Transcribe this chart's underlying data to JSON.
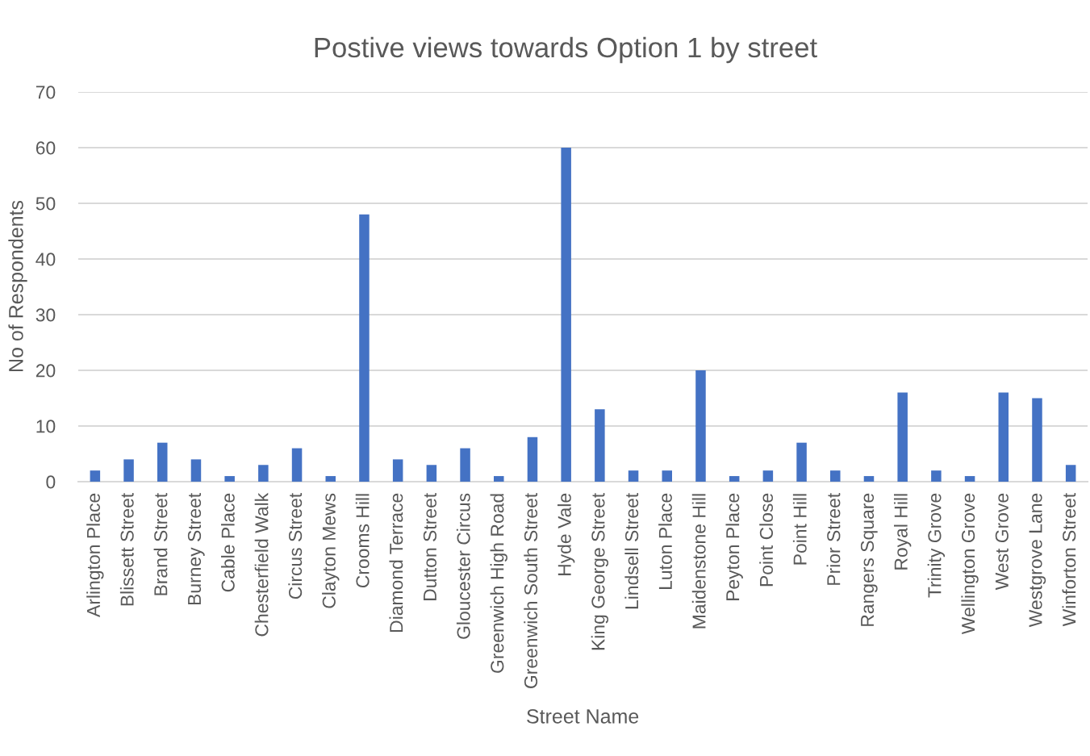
{
  "chart_data": {
    "type": "bar",
    "title": "Postive views towards Option 1 by street",
    "xlabel": "Street Name",
    "ylabel": "No of Respondents",
    "categories": [
      "Arlington Place",
      "Blissett Street",
      "Brand Street",
      "Burney Street",
      "Cable Place",
      "Chesterfield Walk",
      "Circus Street",
      "Clayton Mews",
      "Crooms Hill",
      "Diamond Terrace",
      "Dutton Street",
      "Gloucester Circus",
      "Greenwich High Road",
      "Greenwich South Street",
      "Hyde Vale",
      "King George Street",
      "Lindsell Street",
      "Luton Place",
      "Maidenstone Hill",
      "Peyton Place",
      "Point Close",
      "Point Hill",
      "Prior Street",
      "Rangers Square",
      "Royal Hill",
      "Trinity Grove",
      "Wellington Grove",
      "West Grove",
      "Westgrove Lane",
      "Winforton Street"
    ],
    "values": [
      2,
      4,
      7,
      4,
      1,
      3,
      6,
      1,
      48,
      4,
      3,
      6,
      1,
      8,
      60,
      13,
      2,
      2,
      20,
      1,
      2,
      7,
      2,
      1,
      16,
      2,
      1,
      16,
      15,
      3
    ],
    "color": "#4472c4",
    "ylim": [
      0,
      70
    ],
    "yticks": [
      0,
      10,
      20,
      30,
      40,
      50,
      60,
      70
    ],
    "grid": "y",
    "legend": false
  }
}
